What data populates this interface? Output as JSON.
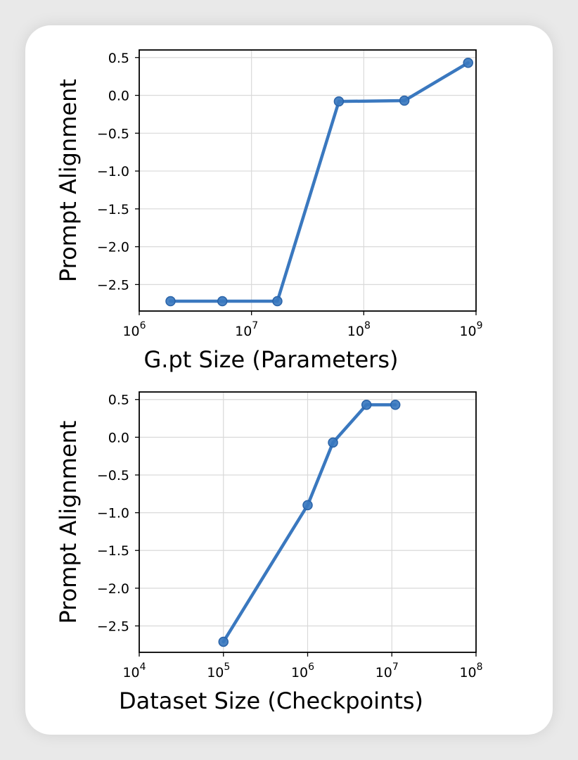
{
  "chart_data": [
    {
      "type": "line",
      "xlabel": "G.pt Size (Parameters)",
      "ylabel": "Prompt Alignment",
      "xscale": "log",
      "xlim": [
        1000000,
        1000000000
      ],
      "ylim": [
        -2.85,
        0.6
      ],
      "x_ticks": [
        {
          "base": "10",
          "exp": "6"
        },
        {
          "base": "10",
          "exp": "7"
        },
        {
          "base": "10",
          "exp": "8"
        },
        {
          "base": "10",
          "exp": "9"
        }
      ],
      "y_ticks": [
        "0.5",
        "0.0",
        "−0.5",
        "−1.0",
        "−1.5",
        "−2.0",
        "−2.5"
      ],
      "grid": true,
      "color": "#3a78bf",
      "series": [
        {
          "x": [
            1900000,
            5500000,
            17000000,
            60000000,
            230000000,
            850000000
          ],
          "y": [
            -2.72,
            -2.72,
            -2.72,
            -0.08,
            -0.07,
            0.43
          ]
        }
      ]
    },
    {
      "type": "line",
      "xlabel": "Dataset Size (Checkpoints)",
      "ylabel": "Prompt Alignment",
      "xscale": "log",
      "xlim": [
        10000,
        100000000
      ],
      "ylim": [
        -2.85,
        0.6
      ],
      "x_ticks": [
        {
          "base": "10",
          "exp": "4"
        },
        {
          "base": "10",
          "exp": "5"
        },
        {
          "base": "10",
          "exp": "6"
        },
        {
          "base": "10",
          "exp": "7"
        },
        {
          "base": "10",
          "exp": "8"
        }
      ],
      "y_ticks": [
        "0.5",
        "0.0",
        "−0.5",
        "−1.0",
        "−1.5",
        "−2.0",
        "−2.5"
      ],
      "grid": true,
      "color": "#3a78bf",
      "series": [
        {
          "x": [
            100000,
            1000000,
            2000000,
            5000000,
            11000000
          ],
          "y": [
            -2.71,
            -0.9,
            -0.07,
            0.43,
            0.43
          ]
        }
      ]
    }
  ]
}
